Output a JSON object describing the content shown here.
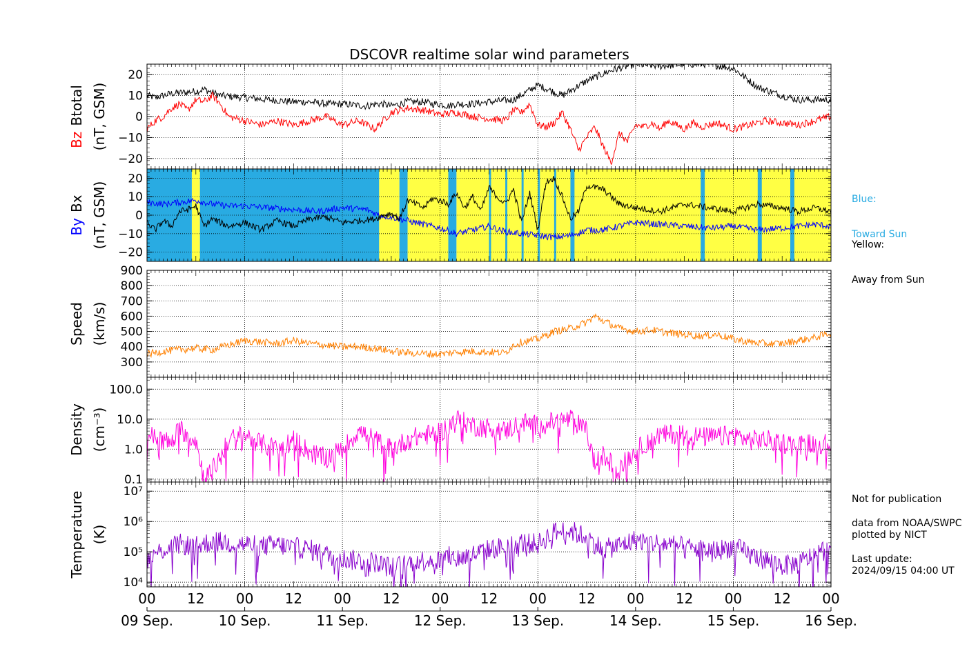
{
  "title": "DSCOVR realtime solar wind parameters",
  "legend": {
    "blue_label": "Blue:",
    "blue_desc": "Toward Sun",
    "yellow_label": "Yellow:",
    "yellow_desc": "Away from Sun"
  },
  "notes": {
    "publication": "Not for publication",
    "source": "data from NOAA/SWPC",
    "plotted": "plotted by NICT",
    "update_label": "Last update:",
    "update_time": "2024/09/15 04:00 UT"
  },
  "colors": {
    "red": "#ff0000",
    "black": "#000000",
    "blue": "#0000ff",
    "toward": "#29abe2",
    "away": "#ffff44",
    "speed": "#ff8000",
    "density": "#ff00dd",
    "temperature": "#8800cc",
    "legend_blue": "#29abe2"
  },
  "chart_data": [
    {
      "type": "line",
      "panel": "Bz / Btotal",
      "ylabel_parts": [
        "Bz",
        "Btotal"
      ],
      "ylabel_unit": "(nT, GSM)",
      "ylim": [
        -25,
        25
      ],
      "yticks": [
        -20,
        -10,
        0,
        10,
        20
      ],
      "ytick_labels": [
        "−20",
        "−10",
        "0",
        "10",
        "20"
      ],
      "grid": true,
      "series": [
        {
          "name": "Btotal",
          "color": "black",
          "x": [
            0,
            2,
            6,
            12,
            14,
            18,
            24,
            30,
            36,
            40,
            44,
            48,
            54,
            56,
            58,
            60,
            62,
            64,
            66,
            68,
            70,
            72,
            74,
            76,
            78,
            80,
            84,
            90,
            96,
            102,
            108,
            114,
            120,
            126,
            132,
            138,
            144,
            150,
            156,
            160,
            164,
            168,
            171
          ],
          "y": [
            10,
            9,
            11,
            12,
            13,
            10,
            9,
            8,
            7,
            7,
            6,
            6,
            5,
            6,
            6,
            5,
            6,
            7,
            7,
            7,
            6,
            6,
            5,
            6,
            6,
            6,
            7,
            8,
            15,
            10,
            17,
            22,
            25,
            24,
            25,
            25,
            23,
            14,
            10,
            8,
            8,
            8,
            8
          ]
        },
        {
          "name": "Bz",
          "color": "red",
          "x": [
            0,
            2,
            4,
            6,
            8,
            10,
            12,
            14,
            16,
            18,
            20,
            24,
            28,
            32,
            36,
            40,
            44,
            48,
            52,
            56,
            60,
            64,
            68,
            72,
            76,
            80,
            84,
            88,
            90,
            92,
            94,
            96,
            98,
            100,
            102,
            104,
            106,
            108,
            110,
            112,
            114,
            116,
            118,
            120,
            122,
            124,
            126,
            128,
            130,
            132,
            134,
            136,
            138,
            140,
            144,
            148,
            152,
            156,
            160,
            164,
            168,
            170,
            171
          ],
          "y": [
            -6,
            -2,
            0,
            4,
            6,
            3,
            8,
            7,
            10,
            6,
            0,
            -2,
            -4,
            -2,
            -4,
            -2,
            0,
            -4,
            -2,
            -6,
            2,
            4,
            3,
            1,
            2,
            0,
            -1,
            -2,
            3,
            2,
            6,
            -4,
            -5,
            -3,
            2,
            -6,
            -16,
            -10,
            -5,
            -14,
            -22,
            -8,
            -12,
            -4,
            -5,
            -3,
            -6,
            -2,
            -4,
            -6,
            -3,
            -5,
            -4,
            -3,
            -6,
            -4,
            -2,
            -3,
            -4,
            -2,
            0,
            -4,
            -6
          ]
        }
      ]
    },
    {
      "type": "line",
      "panel": "By / Bx",
      "ylabel_parts": [
        "By",
        "Bx"
      ],
      "ylabel_unit": "(nT, GSM)",
      "ylim": [
        -25,
        25
      ],
      "yticks": [
        -20,
        -10,
        0,
        10,
        20
      ],
      "ytick_labels": [
        "−20",
        "−10",
        "0",
        "10",
        "20"
      ],
      "grid": true,
      "sector_bands": {
        "toward": [
          [
            0,
            11
          ],
          [
            13,
            57
          ],
          [
            62,
            64
          ],
          [
            74,
            76
          ],
          [
            84,
            84.5
          ],
          [
            88,
            88.5
          ],
          [
            92,
            92.5
          ],
          [
            96,
            96.5
          ],
          [
            100,
            100.5
          ],
          [
            104,
            105
          ],
          [
            136,
            137
          ],
          [
            150,
            151
          ],
          [
            158,
            159
          ],
          [
            168,
            169
          ]
        ],
        "away": [
          [
            11,
            13
          ],
          [
            57,
            62
          ],
          [
            64,
            74
          ],
          [
            76,
            171
          ]
        ],
        "xmax": 171
      },
      "series": [
        {
          "name": "Bx",
          "color": "blue",
          "x": [
            0,
            4,
            8,
            12,
            16,
            20,
            24,
            30,
            36,
            42,
            48,
            54,
            57,
            60,
            64,
            68,
            72,
            76,
            80,
            84,
            88,
            92,
            96,
            100,
            104,
            108,
            112,
            116,
            120,
            126,
            132,
            138,
            144,
            150,
            156,
            160,
            164,
            168,
            171
          ],
          "y": [
            7,
            6,
            7,
            8,
            6,
            5,
            5,
            4,
            3,
            2,
            4,
            3,
            0,
            -1,
            -3,
            -5,
            -7,
            -10,
            -8,
            -6,
            -9,
            -10,
            -11,
            -12,
            -11,
            -8,
            -8,
            -6,
            -4,
            -5,
            -6,
            -7,
            -6,
            -8,
            -7,
            -6,
            -5,
            -6,
            -4
          ]
        },
        {
          "name": "By",
          "color": "black",
          "x": [
            0,
            2,
            4,
            6,
            8,
            10,
            12,
            14,
            16,
            18,
            20,
            24,
            28,
            32,
            36,
            40,
            44,
            48,
            52,
            56,
            58,
            60,
            62,
            64,
            66,
            68,
            70,
            72,
            74,
            76,
            78,
            80,
            82,
            84,
            86,
            88,
            90,
            92,
            94,
            96,
            98,
            100,
            102,
            104,
            106,
            108,
            112,
            116,
            120,
            126,
            132,
            138,
            144,
            150,
            156,
            160,
            164,
            168,
            170,
            171
          ],
          "y": [
            -4,
            -8,
            -3,
            -6,
            2,
            3,
            5,
            -6,
            -2,
            -4,
            -6,
            -4,
            -8,
            -3,
            -6,
            -2,
            -1,
            -4,
            -3,
            -2,
            0,
            1,
            -2,
            8,
            6,
            4,
            9,
            8,
            6,
            12,
            4,
            10,
            2,
            15,
            10,
            6,
            14,
            -4,
            12,
            -8,
            18,
            20,
            10,
            -2,
            2,
            16,
            14,
            6,
            4,
            2,
            6,
            4,
            2,
            6,
            4,
            2,
            4,
            2,
            2,
            0
          ]
        }
      ]
    },
    {
      "type": "line",
      "panel": "Speed",
      "ylabel": "Speed",
      "ylabel_unit": "(km/s)",
      "ylim": [
        200,
        900
      ],
      "yticks": [
        300,
        400,
        500,
        600,
        700,
        800,
        900
      ],
      "ytick_labels": [
        "300",
        "400",
        "500",
        "600",
        "700",
        "800",
        "900"
      ],
      "grid": true,
      "series": [
        {
          "name": "Speed",
          "color": "speed",
          "x": [
            0,
            4,
            8,
            12,
            16,
            20,
            24,
            28,
            32,
            36,
            40,
            44,
            48,
            52,
            56,
            60,
            64,
            68,
            72,
            76,
            80,
            84,
            88,
            90,
            92,
            96,
            100,
            104,
            108,
            110,
            112,
            116,
            120,
            124,
            128,
            132,
            136,
            140,
            144,
            148,
            152,
            156,
            160,
            164,
            168,
            170,
            171
          ],
          "y": [
            350,
            370,
            380,
            390,
            380,
            410,
            440,
            430,
            420,
            440,
            420,
            410,
            400,
            400,
            390,
            370,
            360,
            355,
            350,
            365,
            370,
            365,
            360,
            410,
            430,
            450,
            500,
            520,
            560,
            600,
            570,
            520,
            500,
            510,
            490,
            480,
            470,
            480,
            450,
            430,
            420,
            420,
            440,
            460,
            490,
            520,
            530
          ]
        }
      ]
    },
    {
      "type": "line",
      "panel": "Density",
      "ylabel": "Density",
      "ylabel_unit": "(cm⁻³)",
      "yscale": "log",
      "ylim": [
        0.08,
        250
      ],
      "yticks": [
        0.1,
        1.0,
        10.0,
        100.0
      ],
      "ytick_labels": [
        "0.1",
        "1.0",
        "10.0",
        "100.0"
      ],
      "grid": true,
      "series": [
        {
          "name": "Density",
          "color": "density",
          "x": [
            0,
            2,
            4,
            6,
            8,
            10,
            12,
            14,
            16,
            18,
            20,
            24,
            28,
            32,
            36,
            40,
            44,
            48,
            52,
            56,
            60,
            64,
            66,
            68,
            70,
            72,
            76,
            80,
            84,
            88,
            92,
            96,
            100,
            104,
            108,
            110,
            112,
            116,
            118,
            120,
            122,
            124,
            126,
            128,
            132,
            136,
            140,
            144,
            148,
            152,
            156,
            160,
            164,
            168,
            170,
            171
          ],
          "y": [
            3,
            2.5,
            2,
            1.5,
            5,
            3,
            2,
            0.1,
            0.2,
            0.5,
            2,
            3,
            1.5,
            1,
            2,
            0.8,
            0.5,
            1,
            4,
            2,
            1,
            2,
            2.5,
            3,
            3,
            3.5,
            10,
            6,
            5,
            4,
            8,
            6,
            8,
            10,
            4,
            0.3,
            0.6,
            0.2,
            0.5,
            0.8,
            1.5,
            2,
            3,
            3,
            3.5,
            2.5,
            2.5,
            3,
            2,
            2,
            1.6,
            1.4,
            1.6,
            1.5,
            1.5,
            1.5
          ]
        }
      ]
    },
    {
      "type": "line",
      "panel": "Temperature",
      "ylabel": "Temperature",
      "ylabel_unit": "(K)",
      "yscale": "log",
      "ylim": [
        7000,
        20000000
      ],
      "yticks": [
        10000,
        100000,
        1000000,
        10000000
      ],
      "ytick_labels": [
        "10⁴",
        "10⁵",
        "10⁶",
        "10⁷"
      ],
      "grid": true,
      "series": [
        {
          "name": "Temperature",
          "color": "temperature",
          "x": [
            0,
            4,
            8,
            12,
            16,
            20,
            24,
            28,
            32,
            36,
            40,
            44,
            48,
            52,
            56,
            60,
            64,
            66,
            68,
            70,
            72,
            74,
            76,
            80,
            84,
            88,
            92,
            96,
            100,
            104,
            108,
            112,
            116,
            120,
            124,
            128,
            132,
            136,
            140,
            144,
            148,
            152,
            156,
            160,
            164,
            168,
            170,
            171
          ],
          "y": [
            60000,
            120000,
            180000,
            150000,
            220000,
            200000,
            180000,
            150000,
            170000,
            140000,
            120000,
            80000,
            60000,
            50000,
            45000,
            30000,
            40000,
            55000,
            50000,
            60000,
            50000,
            70000,
            60000,
            80000,
            120000,
            150000,
            200000,
            180000,
            450000,
            500000,
            300000,
            120000,
            160000,
            250000,
            200000,
            180000,
            140000,
            120000,
            110000,
            150000,
            80000,
            55000,
            35000,
            40000,
            80000,
            150000,
            180000,
            160000
          ]
        }
      ]
    }
  ],
  "xaxis": {
    "xlim": [
      0,
      168
    ],
    "hour_labels": [
      "00",
      "12",
      "00",
      "12",
      "00",
      "12",
      "00",
      "12",
      "00",
      "12",
      "00",
      "12",
      "00",
      "12",
      "00"
    ],
    "date_labels": [
      "09 Sep.",
      "10 Sep.",
      "11 Sep.",
      "12 Sep.",
      "13 Sep.",
      "14 Sep.",
      "15 Sep.",
      "16 Sep."
    ]
  }
}
